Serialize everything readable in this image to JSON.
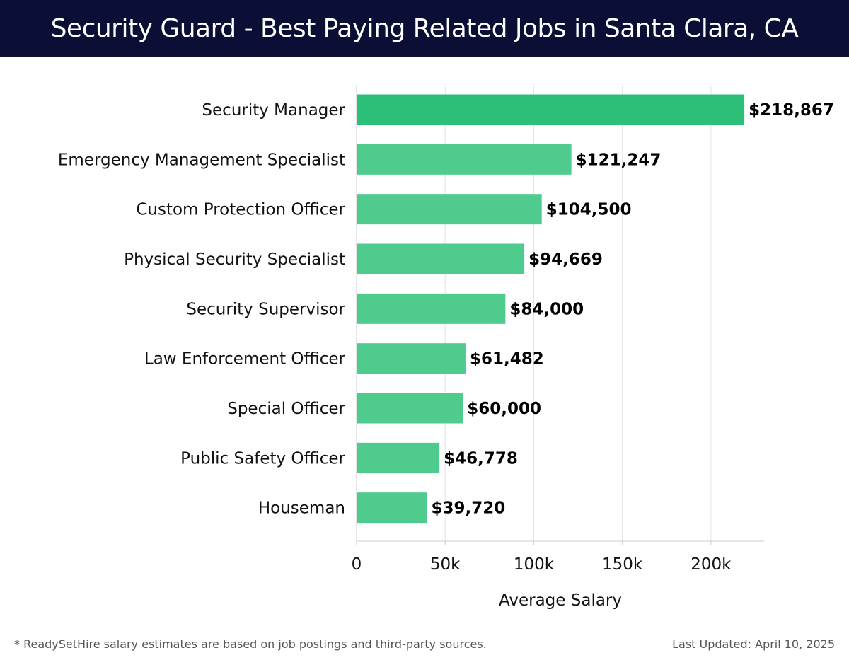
{
  "header": {
    "title": "Security Guard - Best Paying Related Jobs in Santa Clara, CA",
    "background": "#0b0e35"
  },
  "chart_data": {
    "type": "bar",
    "orientation": "horizontal",
    "title": "Security Guard - Best Paying Related Jobs in Santa Clara, CA",
    "categories": [
      "Security Manager",
      "Emergency Management Specialist",
      "Custom Protection Officer",
      "Physical Security Specialist",
      "Security Supervisor",
      "Law Enforcement Officer",
      "Special Officer",
      "Public Safety Officer",
      "Houseman"
    ],
    "values": [
      218867,
      121247,
      104500,
      94669,
      84000,
      61482,
      60000,
      46778,
      39720
    ],
    "value_labels": [
      "$218,867",
      "$121,247",
      "$104,500",
      "$94,669",
      "$84,000",
      "$61,482",
      "$60,000",
      "$46,778",
      "$39,720"
    ],
    "xlabel": "Average Salary",
    "ylabel": "",
    "xlim": [
      0,
      230000
    ],
    "x_ticks": [
      0,
      50000,
      100000,
      150000,
      200000
    ],
    "x_tick_labels": [
      "0",
      "50k",
      "100k",
      "150k",
      "200k"
    ],
    "grid": true,
    "colors": {
      "top_bar": "#2bbf78",
      "bar": "#4fcb8e",
      "grid": "#e3e3e3",
      "axis": "#cccccc"
    }
  },
  "footer": {
    "note": "* ReadySetHire salary estimates are based on job postings and third-party sources.",
    "updated": "Last Updated: April 10, 2025"
  }
}
